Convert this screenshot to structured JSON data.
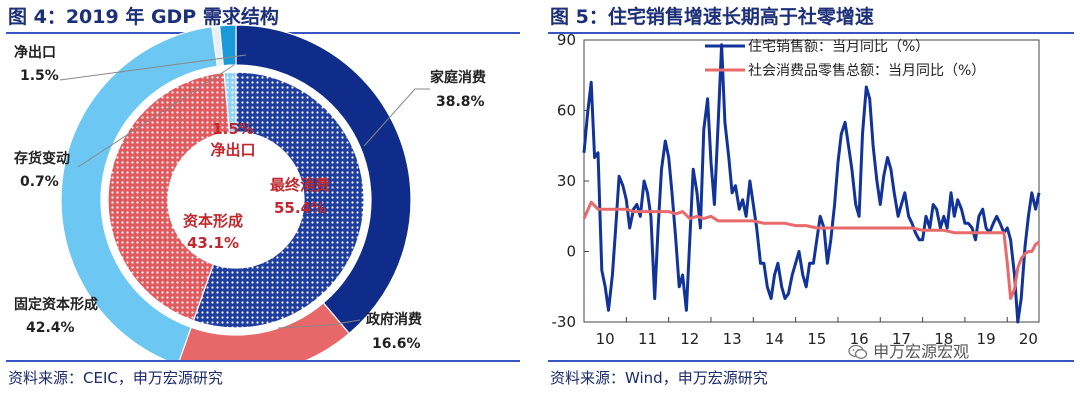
{
  "left_panel": {
    "title": "图 4：2019 年 GDP 需求结构",
    "source": "资料来源：CEIC，申万宏源研究",
    "inner_labels": {
      "net_export": {
        "pct": "1.5%",
        "name": "净出口"
      },
      "final_consumption": {
        "name": "最终消费",
        "pct": "55.4%"
      },
      "capital_formation": {
        "name": "资本形成",
        "pct": "43.1%"
      }
    },
    "outer_labels": {
      "household": {
        "name": "家庭消费",
        "pct": "38.8%"
      },
      "government": {
        "name": "政府消费",
        "pct": "16.6%"
      },
      "fixed_capital": {
        "name": "固定资本形成",
        "pct": "42.4%"
      },
      "inventory": {
        "name": "存货变动",
        "pct": "0.7%"
      },
      "net_export": {
        "name": "净出口",
        "pct": "1.5%"
      }
    },
    "colors": {
      "household": "#0f2c8a",
      "government": "#e8686a",
      "fixed_capital": "#6cc8f2",
      "inventory": "#e6eef6",
      "net_export": "#1a9ad8",
      "final_consumption_inner": "#1f3e9e",
      "capital_formation_inner": "#e05a5e",
      "net_export_inner": "#8fd3f5"
    }
  },
  "right_panel": {
    "title": "图 5：住宅销售增速长期高于社零增速",
    "source": "资料来源：Wind，申万宏源研究",
    "colors": {
      "housing": "#12349a",
      "retail": "#e86a6a"
    }
  },
  "watermark": "申万宏源宏观",
  "chart_data": [
    {
      "type": "pie",
      "title": "图 4：2019 年 GDP 需求结构",
      "rings": [
        {
          "level": "inner",
          "categories": [
            "最终消费",
            "资本形成",
            "净出口"
          ],
          "values": [
            55.4,
            43.1,
            1.5
          ]
        },
        {
          "level": "outer",
          "categories": [
            "家庭消费",
            "政府消费",
            "固定资本形成",
            "存货变动",
            "净出口"
          ],
          "values": [
            38.8,
            16.6,
            42.4,
            0.7,
            1.5
          ]
        }
      ]
    },
    {
      "type": "line",
      "title": "图 5：住宅销售增速长期高于社零增速",
      "xlabel": "",
      "ylabel": "",
      "ylim": [
        -30,
        90
      ],
      "yticks": [
        -30,
        0,
        30,
        60,
        90
      ],
      "xlim": [
        10,
        20.75
      ],
      "xticks": [
        "10",
        "11",
        "12",
        "13",
        "14",
        "15",
        "16",
        "17",
        "18",
        "19",
        "20"
      ],
      "legend_position": "top",
      "grid": false,
      "series": [
        {
          "name": "住宅销售额：当月同比（%）",
          "x": [
            10.0,
            10.08,
            10.17,
            10.25,
            10.33,
            10.42,
            10.5,
            10.58,
            10.67,
            10.75,
            10.83,
            10.92,
            11.0,
            11.08,
            11.17,
            11.25,
            11.33,
            11.42,
            11.5,
            11.58,
            11.67,
            11.75,
            11.83,
            11.92,
            12.0,
            12.08,
            12.17,
            12.25,
            12.33,
            12.42,
            12.5,
            12.58,
            12.67,
            12.75,
            12.83,
            12.92,
            13.0,
            13.08,
            13.17,
            13.25,
            13.33,
            13.42,
            13.5,
            13.58,
            13.67,
            13.75,
            13.83,
            13.92,
            14.0,
            14.08,
            14.17,
            14.25,
            14.33,
            14.42,
            14.5,
            14.58,
            14.67,
            14.75,
            14.83,
            14.92,
            15.0,
            15.08,
            15.17,
            15.25,
            15.33,
            15.42,
            15.5,
            15.58,
            15.67,
            15.75,
            15.83,
            15.92,
            16.0,
            16.08,
            16.17,
            16.25,
            16.33,
            16.42,
            16.5,
            16.58,
            16.67,
            16.75,
            16.83,
            16.92,
            17.0,
            17.08,
            17.17,
            17.25,
            17.33,
            17.42,
            17.5,
            17.58,
            17.67,
            17.75,
            17.83,
            17.92,
            18.0,
            18.08,
            18.17,
            18.25,
            18.33,
            18.42,
            18.5,
            18.58,
            18.67,
            18.75,
            18.83,
            18.92,
            19.0,
            19.08,
            19.17,
            19.25,
            19.33,
            19.42,
            19.5,
            19.58,
            19.67,
            19.75,
            19.83,
            19.92,
            20.0,
            20.08,
            20.17,
            20.25,
            20.33,
            20.42,
            20.5,
            20.58,
            20.67,
            20.75
          ],
          "values": [
            42,
            58,
            72,
            40,
            42,
            -8,
            -15,
            -25,
            -10,
            10,
            32,
            28,
            22,
            10,
            18,
            20,
            15,
            30,
            25,
            15,
            -20,
            10,
            35,
            47,
            40,
            25,
            5,
            -15,
            -10,
            -25,
            5,
            35,
            25,
            10,
            52,
            65,
            38,
            20,
            55,
            88,
            55,
            40,
            25,
            28,
            18,
            22,
            15,
            30,
            20,
            10,
            -5,
            -5,
            -15,
            -20,
            -10,
            -5,
            -15,
            -20,
            -18,
            -10,
            -5,
            0,
            -10,
            -15,
            -5,
            -5,
            5,
            15,
            10,
            -5,
            5,
            20,
            38,
            50,
            55,
            45,
            35,
            20,
            15,
            50,
            70,
            65,
            45,
            30,
            20,
            32,
            40,
            35,
            25,
            15,
            20,
            25,
            15,
            12,
            8,
            5,
            5,
            15,
            10,
            20,
            18,
            10,
            15,
            10,
            25,
            15,
            22,
            18,
            12,
            12,
            10,
            5,
            15,
            18,
            10,
            8,
            12,
            15,
            12,
            8,
            10,
            5,
            -10,
            -30,
            -20,
            2,
            15,
            25,
            18,
            25
          ]
        },
        {
          "name": "社会消费品零售总额：当月同比（%）",
          "x": [
            10.0,
            10.17,
            10.33,
            10.5,
            10.67,
            10.83,
            11.0,
            11.17,
            11.33,
            11.5,
            11.67,
            11.83,
            12.0,
            12.17,
            12.33,
            12.5,
            12.67,
            12.83,
            13.0,
            13.17,
            13.33,
            13.5,
            13.67,
            13.83,
            14.0,
            14.25,
            14.5,
            14.75,
            15.0,
            15.25,
            15.5,
            15.75,
            16.0,
            16.25,
            16.5,
            16.75,
            17.0,
            17.25,
            17.5,
            17.75,
            18.0,
            18.25,
            18.5,
            18.75,
            19.0,
            19.25,
            19.5,
            19.75,
            19.92,
            20.0,
            20.08,
            20.17,
            20.25,
            20.33,
            20.42,
            20.5,
            20.58,
            20.67,
            20.75
          ],
          "values": [
            14,
            21,
            18,
            18,
            18,
            18,
            18,
            17,
            17,
            17,
            17,
            17,
            17,
            16,
            17,
            14,
            15,
            14,
            15,
            13,
            13,
            13,
            13,
            13,
            13,
            12,
            12,
            12,
            11,
            11,
            10,
            10,
            10,
            10,
            10,
            10,
            10,
            10,
            10,
            10,
            9,
            9,
            9,
            8,
            8,
            8,
            8,
            8,
            8,
            -5,
            -20,
            -16,
            -7,
            -3,
            -1,
            0,
            0,
            3,
            4
          ]
        }
      ]
    }
  ]
}
